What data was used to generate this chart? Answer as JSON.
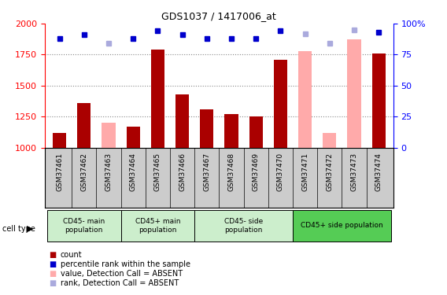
{
  "title": "GDS1037 / 1417006_at",
  "samples": [
    "GSM37461",
    "GSM37462",
    "GSM37463",
    "GSM37464",
    "GSM37465",
    "GSM37466",
    "GSM37467",
    "GSM37468",
    "GSM37469",
    "GSM37470",
    "GSM37471",
    "GSM37472",
    "GSM37473",
    "GSM37474"
  ],
  "count_values": [
    1120,
    1360,
    null,
    1170,
    1790,
    1430,
    1310,
    1270,
    1250,
    1710,
    null,
    null,
    null,
    1760
  ],
  "absent_value_bars": [
    null,
    null,
    1200,
    null,
    null,
    null,
    null,
    null,
    null,
    null,
    1780,
    1120,
    1870,
    null
  ],
  "rank_present": [
    88,
    91,
    null,
    88,
    94,
    91,
    88,
    88,
    88,
    94,
    null,
    null,
    null,
    93
  ],
  "rank_absent": [
    null,
    null,
    84,
    null,
    null,
    null,
    null,
    null,
    null,
    null,
    92,
    84,
    95,
    null
  ],
  "ylim_left": [
    1000,
    2000
  ],
  "ylim_right": [
    0,
    100
  ],
  "yticks_left": [
    1000,
    1250,
    1500,
    1750,
    2000
  ],
  "yticks_right": [
    0,
    25,
    50,
    75,
    100
  ],
  "cell_type_groups": [
    {
      "label": "CD45- main\npopulation",
      "start": 0,
      "end": 2,
      "color": "#cceecc"
    },
    {
      "label": "CD45+ main\npopulation",
      "start": 3,
      "end": 5,
      "color": "#cceecc"
    },
    {
      "label": "CD45- side\npopulation",
      "start": 6,
      "end": 9,
      "color": "#cceecc"
    },
    {
      "label": "CD45+ side population",
      "start": 10,
      "end": 13,
      "color": "#55cc55"
    }
  ],
  "bar_color_present": "#aa0000",
  "bar_color_absent": "#ffaaaa",
  "dot_color_present": "#0000cc",
  "dot_color_absent": "#aaaadd",
  "bar_width": 0.55,
  "xtick_bg": "#cccccc",
  "grid_color": "#888888",
  "legend": [
    {
      "color": "#aa0000",
      "marker": "s",
      "label": "count"
    },
    {
      "color": "#0000cc",
      "marker": "s",
      "label": "percentile rank within the sample"
    },
    {
      "color": "#ffaaaa",
      "marker": "s",
      "label": "value, Detection Call = ABSENT"
    },
    {
      "color": "#aaaadd",
      "marker": "s",
      "label": "rank, Detection Call = ABSENT"
    }
  ]
}
